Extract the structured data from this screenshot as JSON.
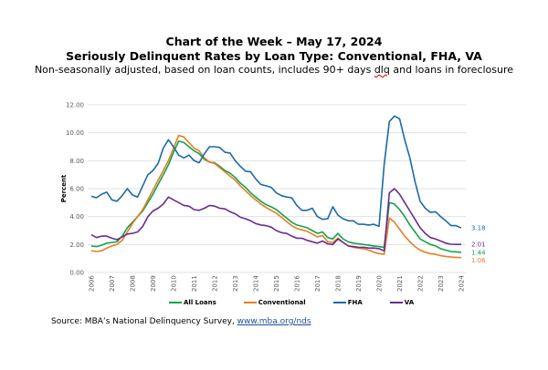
{
  "header": {
    "title": "Chart of the Week – May 17, 2024",
    "subtitle": "Seriously Delinquent Rates by Loan Type: Conventional, FHA, VA",
    "note_before": "Non-seasonally adjusted, based on loan counts, includes 90+ days ",
    "note_flagged": "dlq",
    "note_after": " and loans in foreclosure"
  },
  "source": {
    "prefix": "Source: MBA’s National Delinquency Survey, ",
    "link": "www.mba.org/nds"
  },
  "chart_data": {
    "type": "line",
    "title": "Seriously Delinquent Rates by Loan Type: Conventional, FHA, VA",
    "xlabel": "",
    "ylabel": "Percent",
    "ylim": [
      0,
      12
    ],
    "yticks": [
      "0.00",
      "2.00",
      "4.00",
      "6.00",
      "8.00",
      "10.00",
      "12.00"
    ],
    "xticks": [
      "2006",
      "2007",
      "2008",
      "2009",
      "2010",
      "2011",
      "2012",
      "2013",
      "2014",
      "2015",
      "2016",
      "2017",
      "2018",
      "2019",
      "2020",
      "2021",
      "2022",
      "2023",
      "2024"
    ],
    "xrange": [
      2006.0,
      2024.0
    ],
    "grid": true,
    "legend_position": "bottom",
    "frequency": "quarterly",
    "x_start": 2006.0,
    "series": [
      {
        "name": "All Loans",
        "color": "#13a24b",
        "end_label": "1.44",
        "values": [
          1.9,
          1.85,
          1.95,
          2.1,
          2.15,
          2.2,
          2.6,
          3.2,
          3.6,
          4.0,
          4.4,
          5.0,
          5.6,
          6.3,
          7.0,
          7.7,
          8.6,
          9.4,
          9.3,
          9.0,
          8.7,
          8.5,
          8.1,
          7.9,
          7.85,
          7.6,
          7.3,
          7.1,
          6.8,
          6.4,
          6.1,
          5.7,
          5.4,
          5.1,
          4.85,
          4.7,
          4.5,
          4.2,
          3.9,
          3.6,
          3.4,
          3.3,
          3.2,
          3.0,
          2.8,
          2.9,
          2.5,
          2.4,
          2.8,
          2.4,
          2.2,
          2.1,
          2.05,
          2.0,
          1.95,
          1.9,
          1.85,
          1.8,
          5.0,
          4.9,
          4.5,
          4.0,
          3.4,
          2.9,
          2.4,
          2.2,
          2.0,
          1.9,
          1.7,
          1.6,
          1.5,
          1.48,
          1.44
        ]
      },
      {
        "name": "Conventional",
        "color": "#e67e22",
        "end_label": "1.06",
        "values": [
          1.55,
          1.5,
          1.55,
          1.75,
          1.9,
          2.0,
          2.3,
          2.9,
          3.5,
          4.0,
          4.5,
          5.2,
          5.9,
          6.6,
          7.3,
          8.0,
          8.9,
          9.8,
          9.7,
          9.3,
          8.9,
          8.7,
          8.2,
          7.9,
          7.8,
          7.5,
          7.2,
          6.9,
          6.6,
          6.2,
          5.85,
          5.5,
          5.2,
          4.9,
          4.65,
          4.45,
          4.25,
          3.95,
          3.65,
          3.35,
          3.15,
          3.05,
          2.95,
          2.75,
          2.55,
          2.65,
          2.2,
          2.15,
          2.45,
          2.15,
          1.9,
          1.8,
          1.75,
          1.7,
          1.6,
          1.45,
          1.35,
          1.3,
          3.9,
          3.6,
          3.1,
          2.6,
          2.2,
          1.85,
          1.6,
          1.45,
          1.35,
          1.3,
          1.2,
          1.15,
          1.1,
          1.08,
          1.06
        ]
      },
      {
        "name": "FHA",
        "color": "#1b6aa5",
        "end_label": "3.18",
        "values": [
          5.45,
          5.35,
          5.6,
          5.75,
          5.2,
          5.1,
          5.5,
          6.0,
          5.55,
          5.4,
          6.2,
          7.0,
          7.3,
          7.8,
          8.9,
          9.5,
          9.0,
          8.4,
          8.2,
          8.4,
          8.0,
          7.85,
          8.5,
          9.0,
          9.0,
          8.95,
          8.6,
          8.55,
          8.0,
          7.6,
          7.25,
          7.2,
          6.7,
          6.3,
          6.2,
          6.1,
          5.7,
          5.5,
          5.4,
          5.35,
          4.8,
          4.45,
          4.45,
          4.6,
          4.0,
          3.8,
          3.85,
          4.7,
          4.1,
          3.85,
          3.7,
          3.7,
          3.45,
          3.45,
          3.4,
          3.45,
          3.3,
          7.7,
          10.8,
          11.2,
          11.0,
          9.5,
          8.2,
          6.5,
          5.1,
          4.6,
          4.3,
          4.35,
          4.0,
          3.7,
          3.35,
          3.35,
          3.18
        ]
      },
      {
        "name": "VA",
        "color": "#6a2c91",
        "end_label": "2.01",
        "values": [
          2.7,
          2.5,
          2.6,
          2.6,
          2.45,
          2.35,
          2.55,
          2.75,
          2.8,
          2.9,
          3.3,
          4.0,
          4.4,
          4.6,
          4.9,
          5.4,
          5.2,
          5.0,
          4.8,
          4.75,
          4.5,
          4.45,
          4.6,
          4.8,
          4.75,
          4.6,
          4.55,
          4.35,
          4.2,
          3.95,
          3.85,
          3.7,
          3.5,
          3.4,
          3.35,
          3.25,
          3.0,
          2.85,
          2.8,
          2.6,
          2.45,
          2.45,
          2.3,
          2.2,
          2.1,
          2.25,
          2.05,
          2.0,
          2.4,
          2.15,
          1.9,
          1.85,
          1.8,
          1.8,
          1.75,
          1.75,
          1.7,
          1.55,
          5.7,
          6.0,
          5.6,
          5.0,
          4.4,
          3.8,
          3.2,
          2.8,
          2.5,
          2.4,
          2.25,
          2.1,
          2.02,
          2.01,
          2.01
        ]
      }
    ]
  }
}
